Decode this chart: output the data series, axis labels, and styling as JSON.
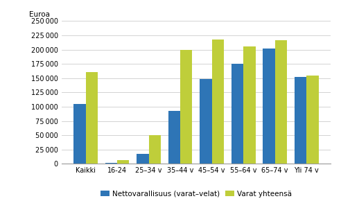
{
  "categories": [
    "Kaikki",
    "16-24",
    "25–34 v",
    "35–44 v",
    "45–54 v",
    "55–64 v",
    "65–74 v",
    "Yli 74 v"
  ],
  "nettovarallisuus": [
    105000,
    1500,
    17000,
    93000,
    149000,
    175000,
    202000,
    152000
  ],
  "varat_yhteensa": [
    160000,
    7000,
    50000,
    200000,
    217000,
    206000,
    216000,
    154000
  ],
  "bar_color_netto": "#2E75B6",
  "bar_color_varat": "#BFCE3A",
  "ylabel": "Euroa",
  "ylim": [
    0,
    250000
  ],
  "yticks": [
    0,
    25000,
    50000,
    75000,
    100000,
    125000,
    150000,
    175000,
    200000,
    225000,
    250000
  ],
  "legend_netto": "Nettovarallisuus (varat–velat)",
  "legend_varat": "Varat yhteensä",
  "background_color": "#ffffff",
  "grid_color": "#cccccc"
}
